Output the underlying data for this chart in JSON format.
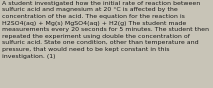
{
  "text": "A student investigated how the initial rate of reaction between\nsulfuric acid and magnesium at 20 °C is affected by the\nconcentration of the acid. The equation for the reaction is\nH2SO4(aq) + Mg(s) MgSO4(aq) + H2(g) The student made\nmeasurements every 20 seconds for 5 minutes. The student then\nrepeated the experiment using double the concentration of\nsulfuric acid. State one condition, other than temperature and\npressure, that would need to be kept constant in this\ninvestigation. (1)",
  "font_size": 4.5,
  "text_color": "#1a1a1a",
  "bg_color": "#c8c4b7",
  "font_family": "DejaVu Sans",
  "linespacing": 1.4
}
